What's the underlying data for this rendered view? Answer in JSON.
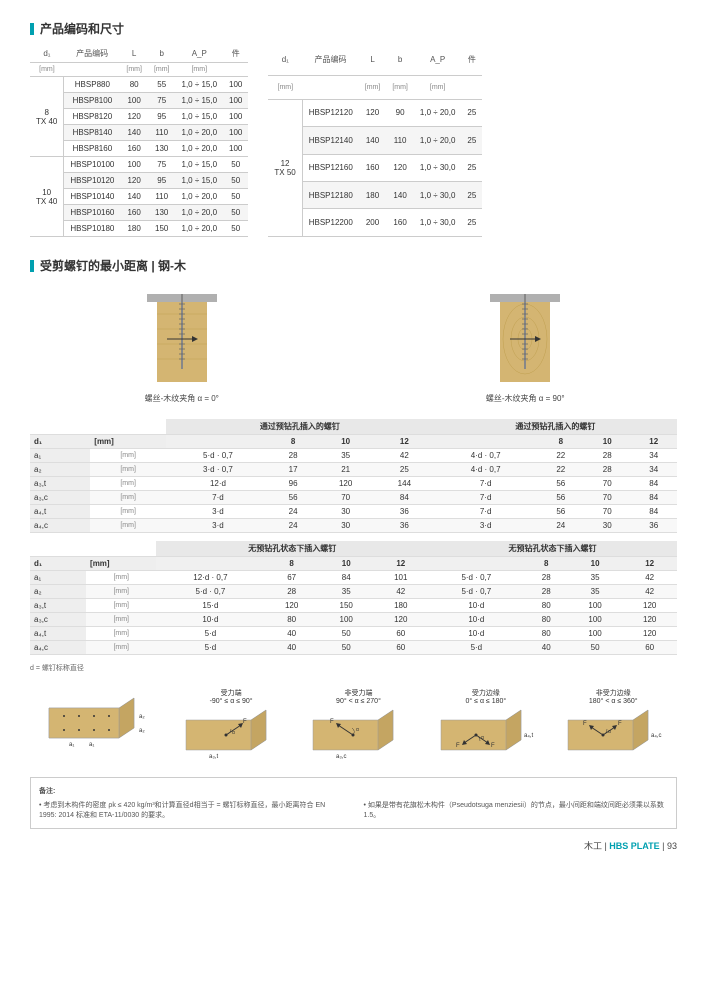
{
  "titles": {
    "dims": "产品编码和尺寸",
    "spacing": "受剪螺钉的最小距离 | 钢-木"
  },
  "prodTable1": {
    "cols": [
      "d₁",
      "产品编码",
      "L",
      "b",
      "A_P",
      "件"
    ],
    "units": [
      "[mm]",
      "",
      "[mm]",
      "[mm]",
      "[mm]",
      ""
    ],
    "groups": [
      {
        "label": "8\nTX 40",
        "rows": [
          [
            "HBSP880",
            "80",
            "55",
            "1,0 ÷ 15,0",
            "100"
          ],
          [
            "HBSP8100",
            "100",
            "75",
            "1,0 ÷ 15,0",
            "100"
          ],
          [
            "HBSP8120",
            "120",
            "95",
            "1,0 ÷ 15,0",
            "100"
          ],
          [
            "HBSP8140",
            "140",
            "110",
            "1,0 ÷ 20,0",
            "100"
          ],
          [
            "HBSP8160",
            "160",
            "130",
            "1,0 ÷ 20,0",
            "100"
          ]
        ]
      },
      {
        "label": "10\nTX 40",
        "rows": [
          [
            "HBSP10100",
            "100",
            "75",
            "1,0 ÷ 15,0",
            "50"
          ],
          [
            "HBSP10120",
            "120",
            "95",
            "1,0 ÷ 15,0",
            "50"
          ],
          [
            "HBSP10140",
            "140",
            "110",
            "1,0 ÷ 20,0",
            "50"
          ],
          [
            "HBSP10160",
            "160",
            "130",
            "1,0 ÷ 20,0",
            "50"
          ],
          [
            "HBSP10180",
            "180",
            "150",
            "1,0 ÷ 20,0",
            "50"
          ]
        ]
      }
    ]
  },
  "prodTable2": {
    "cols": [
      "d₁",
      "产品编码",
      "L",
      "b",
      "A_P",
      "件"
    ],
    "units": [
      "[mm]",
      "",
      "[mm]",
      "[mm]",
      "[mm]",
      ""
    ],
    "groups": [
      {
        "label": "12\nTX 50",
        "rows": [
          [
            "HBSP12120",
            "120",
            "90",
            "1,0 ÷ 20,0",
            "25"
          ],
          [
            "HBSP12140",
            "140",
            "110",
            "1,0 ÷ 20,0",
            "25"
          ],
          [
            "HBSP12160",
            "160",
            "120",
            "1,0 ÷ 30,0",
            "25"
          ],
          [
            "HBSP12180",
            "180",
            "140",
            "1,0 ÷ 30,0",
            "25"
          ],
          [
            "HBSP12200",
            "200",
            "160",
            "1,0 ÷ 30,0",
            "25"
          ]
        ]
      }
    ]
  },
  "diag": {
    "left": "螺丝-木纹夹角 α = 0°",
    "right": "螺丝-木纹夹角 α = 90°"
  },
  "specTable1": {
    "hdrLeft": "通过预钻孔插入的螺钉",
    "hdrRight": "通过预钻孔插入的螺钉",
    "d1row": [
      "d₁",
      "[mm]",
      "",
      "8",
      "10",
      "12",
      "",
      "8",
      "10",
      "12"
    ],
    "rows": [
      [
        "a₁",
        "[mm]",
        "5·d · 0,7",
        "28",
        "35",
        "42",
        "4·d · 0,7",
        "22",
        "28",
        "34"
      ],
      [
        "a₂",
        "[mm]",
        "3·d · 0,7",
        "17",
        "21",
        "25",
        "4·d · 0,7",
        "22",
        "28",
        "34"
      ],
      [
        "a₃,t",
        "[mm]",
        "12·d",
        "96",
        "120",
        "144",
        "7·d",
        "56",
        "70",
        "84"
      ],
      [
        "a₃,c",
        "[mm]",
        "7·d",
        "56",
        "70",
        "84",
        "7·d",
        "56",
        "70",
        "84"
      ],
      [
        "a₄,t",
        "[mm]",
        "3·d",
        "24",
        "30",
        "36",
        "7·d",
        "56",
        "70",
        "84"
      ],
      [
        "a₄,c",
        "[mm]",
        "3·d",
        "24",
        "30",
        "36",
        "3·d",
        "24",
        "30",
        "36"
      ]
    ]
  },
  "specTable2": {
    "hdrLeft": "无预钻孔状态下插入螺钉",
    "hdrRight": "无预钻孔状态下插入螺钉",
    "d1row": [
      "d₁",
      "[mm]",
      "",
      "8",
      "10",
      "12",
      "",
      "8",
      "10",
      "12"
    ],
    "rows": [
      [
        "a₁",
        "[mm]",
        "12·d · 0,7",
        "67",
        "84",
        "101",
        "5·d · 0,7",
        "28",
        "35",
        "42"
      ],
      [
        "a₂",
        "[mm]",
        "5·d · 0,7",
        "28",
        "35",
        "42",
        "5·d · 0,7",
        "28",
        "35",
        "42"
      ],
      [
        "a₃,t",
        "[mm]",
        "15·d",
        "120",
        "150",
        "180",
        "10·d",
        "80",
        "100",
        "120"
      ],
      [
        "a₃,c",
        "[mm]",
        "10·d",
        "80",
        "100",
        "120",
        "10·d",
        "80",
        "100",
        "120"
      ],
      [
        "a₄,t",
        "[mm]",
        "5·d",
        "40",
        "50",
        "60",
        "10·d",
        "80",
        "100",
        "120"
      ],
      [
        "a₄,c",
        "[mm]",
        "5·d",
        "40",
        "50",
        "60",
        "5·d",
        "40",
        "50",
        "60"
      ]
    ]
  },
  "footnote": "d = 螺钉标称直径",
  "beams": [
    {
      "t1": "受力端",
      "t2": "-90° ≤ α ≤ 90°"
    },
    {
      "t1": "非受力端",
      "t2": "90° < α ≤ 270°"
    },
    {
      "t1": "受力边缘",
      "t2": "0° ≤ α ≤ 180°"
    },
    {
      "t1": "非受力边缘",
      "t2": "180° < α ≤ 360°"
    }
  ],
  "notes": {
    "title": "备注:",
    "left": "• 考虑到木构件的密度 ρk ≤ 420 kg/m³和计算直径d相当于 = 螺钉标称直径，最小距离符合 EN 1995: 2014 标准和 ETA-11/0030 的要求。",
    "right": "• 如果是带有花旗松木构件（Pseudotsuga menziesii）的节点，最小间距和端纹间距必须乘以系数 1.5。"
  },
  "footer": {
    "cat": "木工",
    "prod": "HBS PLATE",
    "pg": "93"
  },
  "colors": {
    "accent": "#00a0b0",
    "wood": "#d4b572",
    "steel": "#b0b0b0"
  }
}
